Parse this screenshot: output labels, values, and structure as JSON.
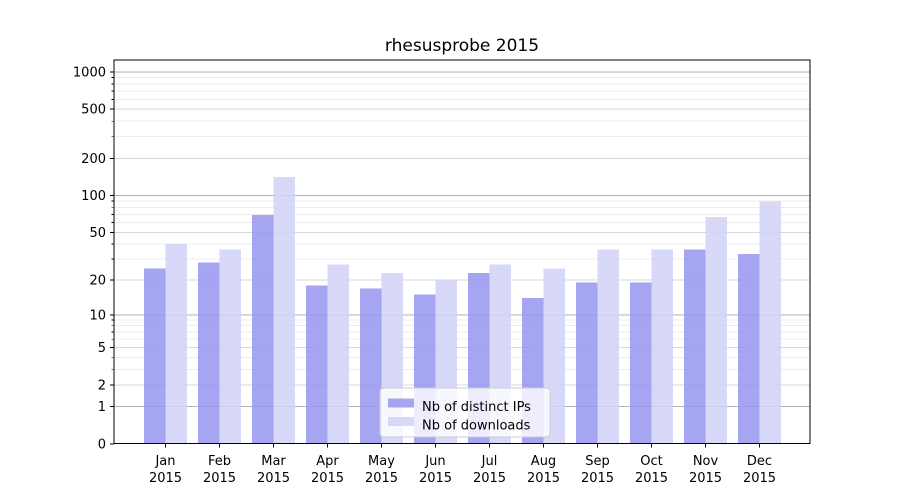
{
  "chart_data": {
    "type": "bar",
    "title": "rhesusprobe 2015",
    "xlabel": "",
    "ylabel": "",
    "categories": [
      "Jan 2015",
      "Feb 2015",
      "Mar 2015",
      "Apr 2015",
      "May 2015",
      "Jun 2015",
      "Jul 2015",
      "Aug 2015",
      "Sep 2015",
      "Oct 2015",
      "Nov 2015",
      "Dec 2015"
    ],
    "series": [
      {
        "name": "Nb of distinct IPs",
        "color": "#9898f0",
        "values": [
          25,
          28,
          69,
          18,
          17,
          15,
          23,
          14,
          19,
          19,
          36,
          33
        ]
      },
      {
        "name": "Nb of downloads",
        "color": "#d2d2f8",
        "values": [
          40,
          36,
          141,
          27,
          23,
          20,
          27,
          25,
          36,
          36,
          67,
          89
        ]
      }
    ],
    "yscale": "log1p",
    "yticks": [
      0,
      1,
      2,
      5,
      10,
      20,
      50,
      100,
      200,
      500,
      1000
    ],
    "ylim": [
      0,
      1400
    ],
    "grid": true,
    "legend_position": "lower center"
  },
  "colors": {
    "grid_major_power10": "#b3b3b3",
    "grid_major_other": "#d7d7d7",
    "grid_minor": "#ececec",
    "spine": "#000000",
    "legend_border": "#cccccc",
    "legend_background": "#ffffff"
  }
}
